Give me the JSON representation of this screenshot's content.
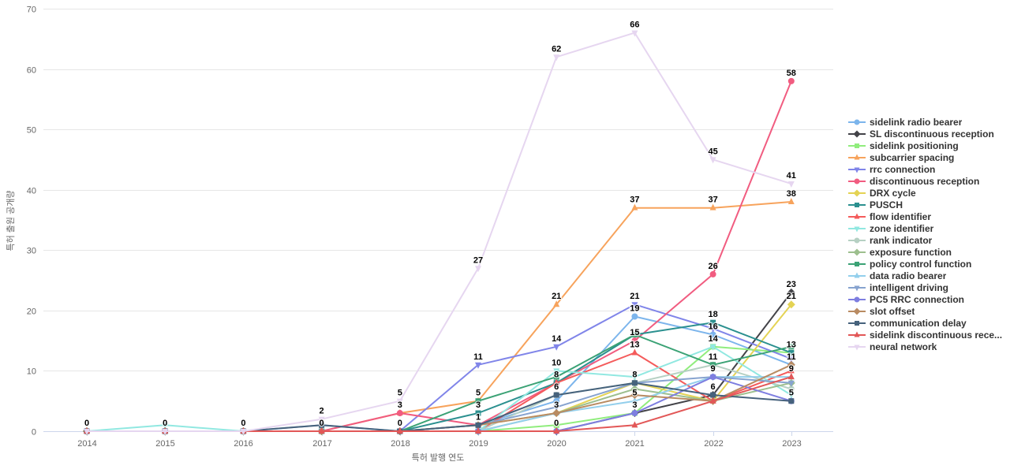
{
  "axes": {
    "y_title": "특허 출원 공개량",
    "x_title": "특허 발행 연도"
  },
  "styles": {
    "grid_color": "#e6e6e6",
    "axis_line_color": "#ccd6eb",
    "tick_label_color": "#666666",
    "legend_text_color": "#333333",
    "data_label_color": "#000000",
    "background": "#ffffff"
  },
  "chart_data": {
    "type": "line",
    "title": "",
    "xlabel": "특허 발행 연도",
    "ylabel": "특허 출원 공개량",
    "x": [
      2014,
      2015,
      2016,
      2017,
      2018,
      2019,
      2020,
      2021,
      2022,
      2023
    ],
    "ylim": [
      0,
      70
    ],
    "ytick_step": 10,
    "grid": true,
    "legend_position": "right",
    "series": [
      {
        "name": "sidelink radio bearer",
        "color": "#7cb5ec",
        "marker": "circle",
        "values": [
          0,
          0,
          0,
          0,
          0,
          1,
          5,
          19,
          16,
          11
        ]
      },
      {
        "name": "SL discontinuous reception",
        "color": "#434348",
        "marker": "diamond",
        "values": [
          0,
          0,
          0,
          0,
          0,
          0,
          0,
          3,
          6,
          23
        ]
      },
      {
        "name": "sidelink positioning",
        "color": "#90ed7d",
        "marker": "square",
        "values": [
          0,
          0,
          0,
          0,
          0,
          0,
          1,
          3,
          14,
          13
        ]
      },
      {
        "name": "subcarrier spacing",
        "color": "#f7a35c",
        "marker": "triangle",
        "values": [
          0,
          0,
          0,
          0,
          3,
          5,
          21,
          37,
          37,
          38
        ]
      },
      {
        "name": "rrc connection",
        "color": "#8085e9",
        "marker": "triangle-down",
        "values": [
          0,
          0,
          0,
          0,
          0,
          11,
          14,
          21,
          17,
          12
        ]
      },
      {
        "name": "discontinuous reception",
        "color": "#f15c80",
        "marker": "circle",
        "values": [
          0,
          0,
          0,
          0,
          3,
          1,
          8,
          15,
          26,
          58
        ]
      },
      {
        "name": "DRX cycle",
        "color": "#e4d354",
        "marker": "diamond",
        "values": [
          0,
          0,
          0,
          0,
          0,
          1,
          3,
          8,
          5,
          21
        ]
      },
      {
        "name": "PUSCH",
        "color": "#2b908f",
        "marker": "square",
        "values": [
          0,
          0,
          0,
          0,
          0,
          3,
          8,
          16,
          18,
          13
        ]
      },
      {
        "name": "flow identifier",
        "color": "#f45b5b",
        "marker": "triangle",
        "values": [
          0,
          0,
          0,
          0,
          0,
          0,
          8,
          13,
          5,
          10
        ]
      },
      {
        "name": "zone identifier",
        "color": "#91e8e1",
        "marker": "triangle-down",
        "values": [
          0,
          1,
          0,
          0,
          0,
          0,
          10,
          9,
          14,
          6
        ]
      },
      {
        "name": "rank indicator",
        "color": "#b6d0c3",
        "marker": "circle",
        "values": [
          0,
          0,
          0,
          0,
          0,
          0,
          6,
          8,
          11,
          7
        ]
      },
      {
        "name": "exposure function",
        "color": "#9dbf8e",
        "marker": "diamond",
        "values": [
          0,
          0,
          0,
          0,
          0,
          0,
          3,
          7,
          5,
          8
        ]
      },
      {
        "name": "policy control function",
        "color": "#3ba275",
        "marker": "square",
        "values": [
          0,
          0,
          0,
          0,
          0,
          5,
          9,
          16,
          11,
          14
        ]
      },
      {
        "name": "data radio bearer",
        "color": "#93cfec",
        "marker": "triangle",
        "values": [
          0,
          0,
          0,
          0,
          0,
          0,
          3,
          5,
          9,
          9
        ]
      },
      {
        "name": "intelligent driving",
        "color": "#87a3cf",
        "marker": "triangle-down",
        "values": [
          0,
          0,
          0,
          1,
          0,
          1,
          4,
          8,
          9,
          8
        ]
      },
      {
        "name": "PC5 RRC connection",
        "color": "#7e7ee0",
        "marker": "circle",
        "values": [
          0,
          0,
          0,
          0,
          0,
          0,
          0,
          3,
          9,
          5
        ]
      },
      {
        "name": "slot offset",
        "color": "#b98b62",
        "marker": "diamond",
        "values": [
          0,
          0,
          0,
          0,
          0,
          1,
          3,
          6,
          5,
          11
        ]
      },
      {
        "name": "communication delay",
        "color": "#46627c",
        "marker": "square",
        "values": [
          0,
          0,
          0,
          1,
          0,
          1,
          6,
          8,
          6,
          5
        ]
      },
      {
        "name": "sidelink discontinuous rece...",
        "color": "#e25757",
        "marker": "triangle",
        "values": [
          0,
          0,
          0,
          0,
          0,
          0,
          0,
          1,
          5,
          9
        ]
      },
      {
        "name": "neural network",
        "color": "#e6d6f0",
        "marker": "triangle-down",
        "values": [
          0,
          0,
          0,
          2,
          5,
          27,
          62,
          66,
          45,
          41
        ]
      }
    ],
    "annotations": [
      {
        "series": "communication delay",
        "year": 2014,
        "value": 0
      },
      {
        "series": "communication delay",
        "year": 2015,
        "value": 0
      },
      {
        "series": "communication delay",
        "year": 2016,
        "value": 0
      },
      {
        "series": "neural network",
        "year": 2017,
        "value": 2
      },
      {
        "series": "communication delay",
        "year": 2017,
        "value": 0
      },
      {
        "series": "neural network",
        "year": 2018,
        "value": 5
      },
      {
        "series": "discontinuous reception",
        "year": 2018,
        "value": 3
      },
      {
        "series": "communication delay",
        "year": 2018,
        "value": 0
      },
      {
        "series": "neural network",
        "year": 2019,
        "value": 27
      },
      {
        "series": "rrc connection",
        "year": 2019,
        "value": 11
      },
      {
        "series": "policy control function",
        "year": 2019,
        "value": 5
      },
      {
        "series": "PUSCH",
        "year": 2019,
        "value": 3
      },
      {
        "series": "discontinuous reception",
        "year": 2019,
        "value": 1
      },
      {
        "series": "neural network",
        "year": 2020,
        "value": 62
      },
      {
        "series": "subcarrier spacing",
        "year": 2020,
        "value": 21
      },
      {
        "series": "rrc connection",
        "year": 2020,
        "value": 14
      },
      {
        "series": "zone identifier",
        "year": 2020,
        "value": 10
      },
      {
        "series": "PUSCH",
        "year": 2020,
        "value": 8
      },
      {
        "series": "communication delay",
        "year": 2020,
        "value": 6
      },
      {
        "series": "DRX cycle",
        "year": 2020,
        "value": 3
      },
      {
        "series": "PC5 RRC connection",
        "year": 2020,
        "value": 0
      },
      {
        "series": "neural network",
        "year": 2021,
        "value": 66
      },
      {
        "series": "subcarrier spacing",
        "year": 2021,
        "value": 37
      },
      {
        "series": "rrc connection",
        "year": 2021,
        "value": 21
      },
      {
        "series": "sidelink radio bearer",
        "year": 2021,
        "value": 19
      },
      {
        "series": "discontinuous reception",
        "year": 2021,
        "value": 15
      },
      {
        "series": "flow identifier",
        "year": 2021,
        "value": 13
      },
      {
        "series": "communication delay",
        "year": 2021,
        "value": 8
      },
      {
        "series": "data radio bearer",
        "year": 2021,
        "value": 5
      },
      {
        "series": "sidelink positioning",
        "year": 2021,
        "value": 3
      },
      {
        "series": "neural network",
        "year": 2022,
        "value": 45
      },
      {
        "series": "subcarrier spacing",
        "year": 2022,
        "value": 37
      },
      {
        "series": "discontinuous reception",
        "year": 2022,
        "value": 26
      },
      {
        "series": "PUSCH",
        "year": 2022,
        "value": 18
      },
      {
        "series": "sidelink radio bearer",
        "year": 2022,
        "value": 16
      },
      {
        "series": "zone identifier",
        "year": 2022,
        "value": 14
      },
      {
        "series": "rank indicator",
        "year": 2022,
        "value": 11
      },
      {
        "series": "data radio bearer",
        "year": 2022,
        "value": 9
      },
      {
        "series": "communication delay",
        "year": 2022,
        "value": 6
      },
      {
        "series": "discontinuous reception",
        "year": 2023,
        "value": 58
      },
      {
        "series": "neural network",
        "year": 2023,
        "value": 41
      },
      {
        "series": "subcarrier spacing",
        "year": 2023,
        "value": 38
      },
      {
        "series": "SL discontinuous reception",
        "year": 2023,
        "value": 23
      },
      {
        "series": "DRX cycle",
        "year": 2023,
        "value": 21
      },
      {
        "series": "PUSCH",
        "year": 2023,
        "value": 13
      },
      {
        "series": "slot offset",
        "year": 2023,
        "value": 11
      },
      {
        "series": "data radio bearer",
        "year": 2023,
        "value": 9
      },
      {
        "series": "PC5 RRC connection",
        "year": 2023,
        "value": 5
      }
    ]
  }
}
